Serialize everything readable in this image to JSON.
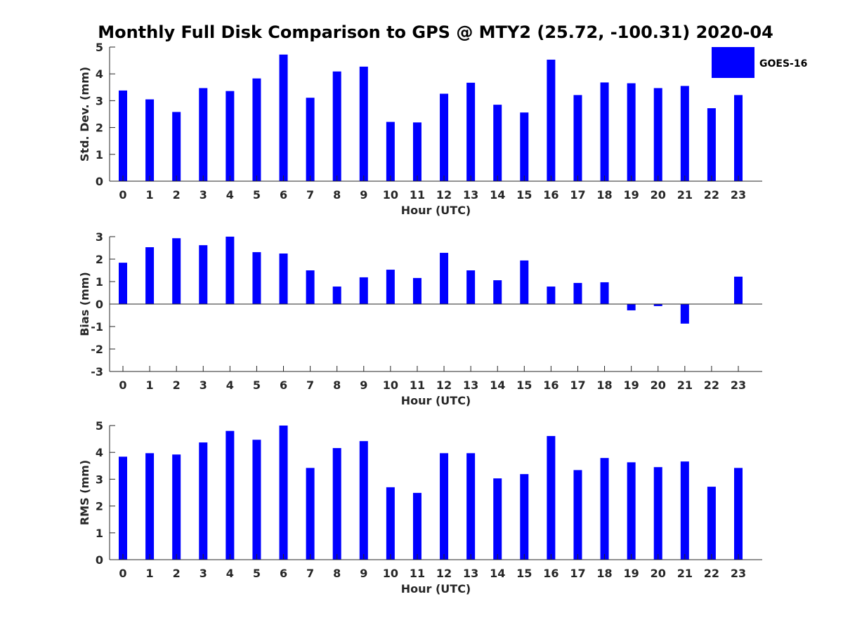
{
  "title": "Monthly Full Disk Comparison to GPS @ MTY2 (25.72, -100.31) 2020-04",
  "legend": {
    "label": "GOES-16",
    "color": "#0000ff",
    "placement": "top-right"
  },
  "chart_data": [
    {
      "type": "bar",
      "name": "std_dev",
      "xlabel": "Hour (UTC)",
      "ylabel": "Std. Dev. (mm)",
      "ylim": [
        0,
        5
      ],
      "yticks": [
        0,
        1,
        2,
        3,
        4,
        5
      ],
      "categories": [
        "0",
        "1",
        "2",
        "3",
        "4",
        "5",
        "6",
        "7",
        "8",
        "9",
        "10",
        "11",
        "12",
        "13",
        "14",
        "15",
        "16",
        "17",
        "18",
        "19",
        "20",
        "21",
        "22",
        "23"
      ],
      "series": [
        {
          "name": "GOES-16",
          "values": [
            3.38,
            3.05,
            2.58,
            3.47,
            3.36,
            3.83,
            4.72,
            3.11,
            4.09,
            4.27,
            2.21,
            2.19,
            3.26,
            3.67,
            2.85,
            2.56,
            4.53,
            3.21,
            3.68,
            3.65,
            3.47,
            3.55,
            2.72,
            3.21
          ]
        }
      ],
      "grid": false
    },
    {
      "type": "bar",
      "name": "bias",
      "xlabel": "Hour (UTC)",
      "ylabel": "Bias (mm)",
      "ylim": [
        -3,
        3
      ],
      "yticks": [
        -3,
        -2,
        -1,
        0,
        1,
        2,
        3
      ],
      "categories": [
        "0",
        "1",
        "2",
        "3",
        "4",
        "5",
        "6",
        "7",
        "8",
        "9",
        "10",
        "11",
        "12",
        "13",
        "14",
        "15",
        "16",
        "17",
        "18",
        "19",
        "20",
        "21",
        "22",
        "23"
      ],
      "series": [
        {
          "name": "GOES-16",
          "values": [
            1.84,
            2.53,
            2.93,
            2.62,
            3.0,
            2.31,
            2.25,
            1.5,
            0.78,
            1.19,
            1.53,
            1.16,
            2.28,
            1.5,
            1.06,
            1.94,
            0.78,
            0.94,
            0.97,
            -0.28,
            -0.09,
            -0.87,
            0,
            1.22
          ]
        }
      ],
      "grid": false
    },
    {
      "type": "bar",
      "name": "rms",
      "xlabel": "Hour (UTC)",
      "ylabel": "RMS (mm)",
      "ylim": [
        0,
        5
      ],
      "yticks": [
        0,
        1,
        2,
        3,
        4,
        5
      ],
      "categories": [
        "0",
        "1",
        "2",
        "3",
        "4",
        "5",
        "6",
        "7",
        "8",
        "9",
        "10",
        "11",
        "12",
        "13",
        "14",
        "15",
        "16",
        "17",
        "18",
        "19",
        "20",
        "21",
        "22",
        "23"
      ],
      "series": [
        {
          "name": "GOES-16",
          "values": [
            3.84,
            3.97,
            3.92,
            4.37,
            4.8,
            4.47,
            5.0,
            3.42,
            4.16,
            4.42,
            2.7,
            2.49,
            3.97,
            3.97,
            3.03,
            3.19,
            4.61,
            3.34,
            3.79,
            3.63,
            3.45,
            3.66,
            2.72,
            3.42
          ]
        }
      ],
      "grid": false
    }
  ]
}
